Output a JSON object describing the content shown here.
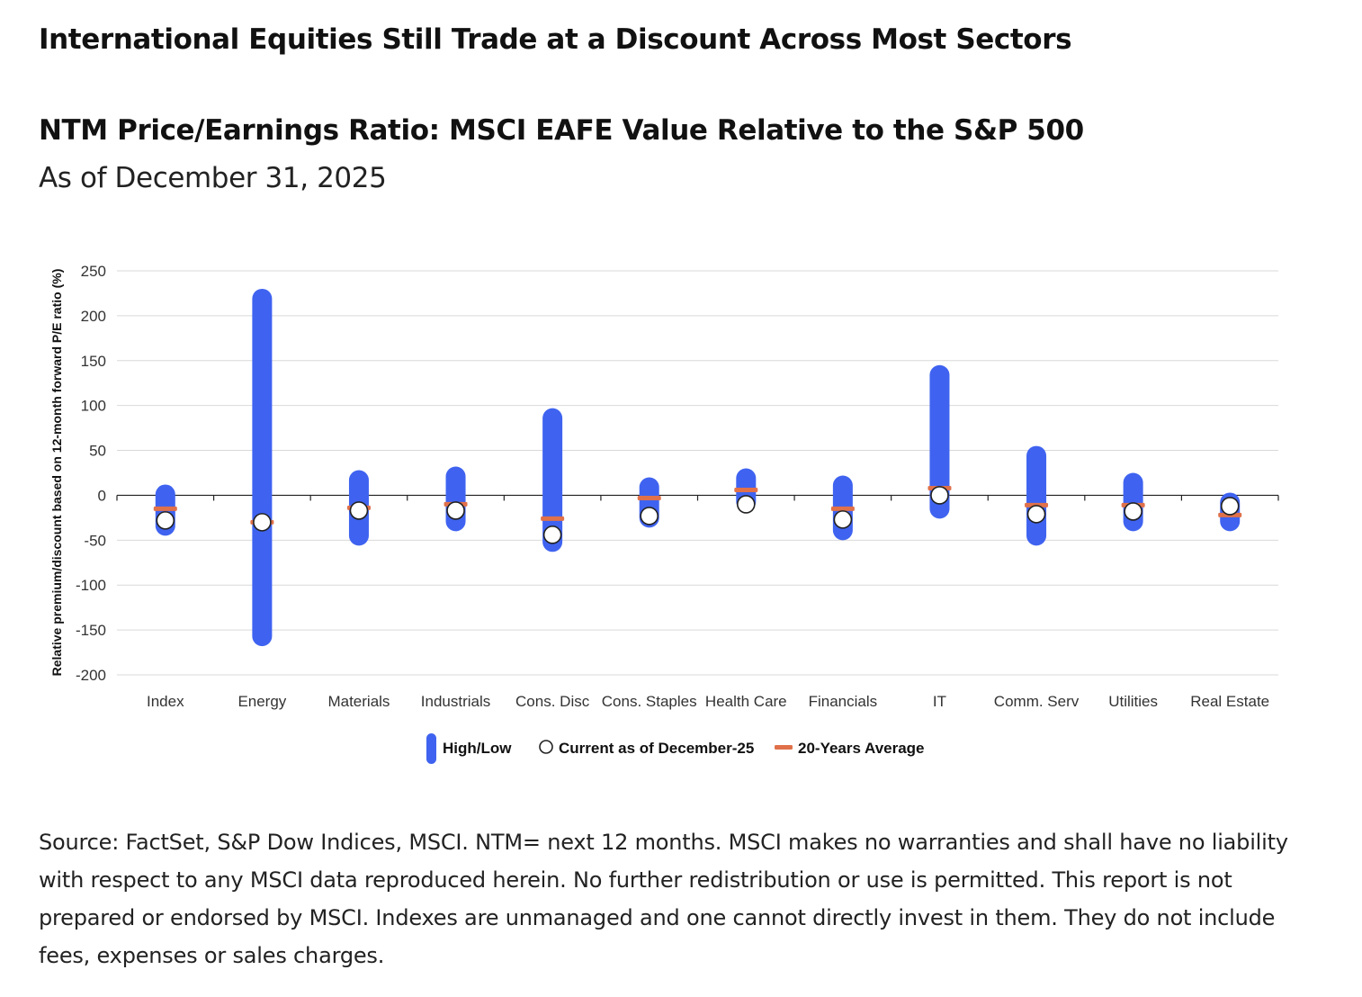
{
  "headline": "International Equities Still Trade at a Discount Across Most Sectors",
  "source": "Source: FactSet, S&P Dow Indices, MSCI. NTM= next 12 months. MSCI makes no warranties and shall have no liability with respect to any MSCI data reproduced herein. No further redistribution or use is permitted. This report is not prepared or endorsed by MSCI. Indexes are unmanaged and one cannot directly invest in them. They do not include fees, expenses or sales charges.",
  "colors": {
    "range": "#3f63f0",
    "average": "#e0714a",
    "current_fill": "#ffffff",
    "current_stroke": "#222222",
    "grid": "#d9d9d9",
    "axis": "#222222"
  },
  "chart_data": {
    "type": "range",
    "title": "NTM Price/Earnings Ratio: MSCI EAFE Value Relative to the S&P 500",
    "subtitle": "As of December 31, 2025",
    "ylabel": "Relative premium/discount based on 12-month forward P/E ratio (%)",
    "ylim": [
      -200,
      250
    ],
    "yticks": [
      250,
      200,
      150,
      100,
      50,
      0,
      -50,
      -100,
      -150,
      -200
    ],
    "grid": true,
    "legend_position": "bottom",
    "legend": {
      "range": "High/Low",
      "current": "Current as of December-25",
      "average": "20-Years Average"
    },
    "categories": [
      "Index",
      "Energy",
      "Materials",
      "Industrials",
      "Cons. Disc",
      "Cons. Staples",
      "Health Care",
      "Financials",
      "IT",
      "Comm. Serv",
      "Utilities",
      "Real Estate"
    ],
    "high": [
      12,
      230,
      28,
      32,
      97,
      20,
      30,
      22,
      145,
      55,
      25,
      3
    ],
    "low": [
      -45,
      -168,
      -56,
      -40,
      -63,
      -36,
      -18,
      -50,
      -26,
      -56,
      -40,
      -40
    ],
    "current": [
      -28,
      -30,
      -17,
      -17,
      -44,
      -23,
      -10,
      -27,
      0,
      -21,
      -18,
      -12
    ],
    "average": [
      -15,
      -30,
      -14,
      -10,
      -26,
      -3,
      6,
      -15,
      8,
      -11,
      -11,
      -22
    ]
  }
}
